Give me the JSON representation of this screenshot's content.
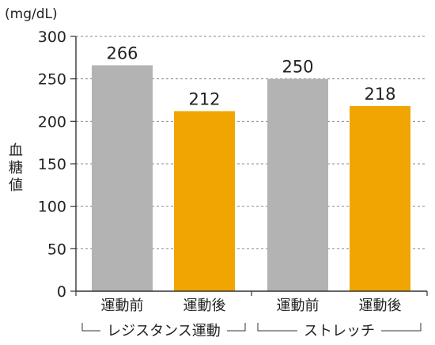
{
  "chart_data": {
    "type": "bar",
    "unit": "(mg/dL)",
    "ylabel": "血糖値",
    "ylim": [
      0,
      300
    ],
    "yticks": [
      0,
      50,
      100,
      150,
      200,
      250,
      300
    ],
    "grid": true,
    "groups": [
      {
        "name": "レジスタンス運動",
        "bars": [
          {
            "category": "運動前",
            "value": 266,
            "label": "266",
            "color": "#b3b3b3"
          },
          {
            "category": "運動後",
            "value": 212,
            "label": "212",
            "color": "#f0a500"
          }
        ]
      },
      {
        "name": "ストレッチ",
        "bars": [
          {
            "category": "運動前",
            "value": 250,
            "label": "250",
            "color": "#b3b3b3"
          },
          {
            "category": "運動後",
            "value": 218,
            "label": "218",
            "color": "#f0a500"
          }
        ]
      }
    ]
  }
}
